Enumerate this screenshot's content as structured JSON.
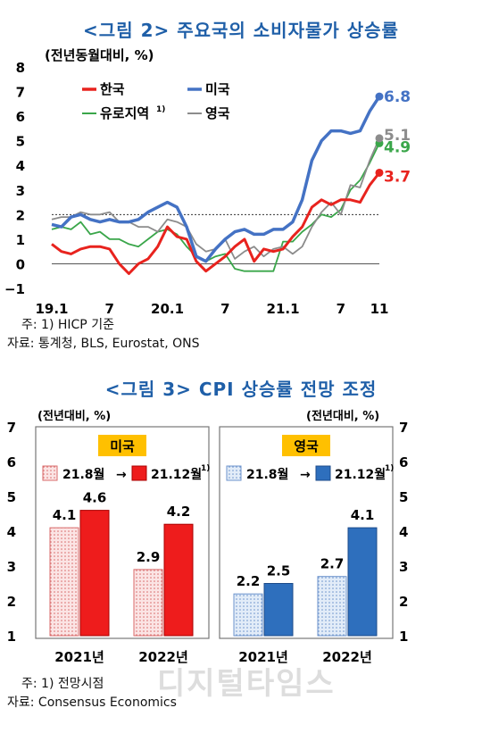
{
  "fig2": {
    "title": "<그림 2> 주요국의 소비자물가 상승률",
    "unit": "(전년동월대비, %)",
    "footnote": "주: 1) HICP 기준",
    "source": "자료: 통계청, BLS, Eurostat, ONS"
  },
  "fig3": {
    "title": "<그림 3> CPI 상승률 전망 조정",
    "unit_left": "(전년대비, %)",
    "unit_right": "(전년대비, %)",
    "footnote": "주: 1) 전망시점",
    "source": "자료: Consensus Economics"
  },
  "watermark": "디지털타임스",
  "colors": {
    "korea": "#e8231e",
    "usa": "#4472c4",
    "euro": "#3aa64a",
    "uk": "#8c8c8c",
    "title": "#1f5fa8",
    "box_label": "#ffc000",
    "bar_red": "#ee1c1c",
    "bar_blue": "#2e6fbd"
  },
  "chart_data": [
    {
      "type": "line",
      "title": "<그림 2> 주요국의 소비자물가 상승률",
      "ylabel": "(전년동월대비, %)",
      "ylim": [
        -1,
        8
      ],
      "yticks": [
        "8",
        "7",
        "6",
        "5",
        "4",
        "3",
        "2",
        "1",
        "0",
        "−1"
      ],
      "xtick_labels": [
        "19.1",
        "7",
        "20.1",
        "7",
        "21.1",
        "7",
        "11"
      ],
      "x": [
        "19.1",
        "19.2",
        "19.3",
        "19.4",
        "19.5",
        "19.6",
        "19.7",
        "19.8",
        "19.9",
        "19.10",
        "19.11",
        "19.12",
        "20.1",
        "20.2",
        "20.3",
        "20.4",
        "20.5",
        "20.6",
        "20.7",
        "20.8",
        "20.9",
        "20.10",
        "20.11",
        "20.12",
        "21.1",
        "21.2",
        "21.3",
        "21.4",
        "21.5",
        "21.6",
        "21.7",
        "21.8",
        "21.9",
        "21.10",
        "21.11"
      ],
      "reference_line": 2,
      "series": [
        {
          "name": "한국",
          "key": "korea",
          "end_label": "3.7",
          "values": [
            0.8,
            0.5,
            0.4,
            0.6,
            0.7,
            0.7,
            0.6,
            0.0,
            -0.4,
            0.0,
            0.2,
            0.7,
            1.5,
            1.1,
            1.0,
            0.1,
            -0.3,
            0.0,
            0.3,
            0.7,
            1.0,
            0.1,
            0.6,
            0.5,
            0.6,
            1.1,
            1.5,
            2.3,
            2.6,
            2.4,
            2.6,
            2.6,
            2.5,
            3.2,
            3.7
          ]
        },
        {
          "name": "미국",
          "key": "usa",
          "end_label": "6.8",
          "values": [
            1.6,
            1.5,
            1.9,
            2.0,
            1.8,
            1.7,
            1.8,
            1.7,
            1.7,
            1.8,
            2.1,
            2.3,
            2.5,
            2.3,
            1.5,
            0.3,
            0.1,
            0.6,
            1.0,
            1.3,
            1.4,
            1.2,
            1.2,
            1.4,
            1.4,
            1.7,
            2.6,
            4.2,
            5.0,
            5.4,
            5.4,
            5.3,
            5.4,
            6.2,
            6.8
          ]
        },
        {
          "name": "유로지역",
          "key": "euro",
          "sup": "1)",
          "end_label": "4.9",
          "values": [
            1.4,
            1.5,
            1.4,
            1.7,
            1.2,
            1.3,
            1.0,
            1.0,
            0.8,
            0.7,
            1.0,
            1.3,
            1.4,
            1.2,
            0.7,
            0.3,
            0.1,
            0.3,
            0.4,
            -0.2,
            -0.3,
            -0.3,
            -0.3,
            -0.3,
            0.9,
            0.9,
            1.3,
            1.6,
            2.0,
            1.9,
            2.2,
            3.0,
            3.4,
            4.1,
            4.9
          ]
        },
        {
          "name": "영국",
          "key": "uk",
          "end_label": "5.1",
          "values": [
            1.8,
            1.9,
            1.9,
            2.1,
            2.0,
            2.0,
            2.1,
            1.7,
            1.7,
            1.5,
            1.5,
            1.3,
            1.8,
            1.7,
            1.5,
            0.8,
            0.5,
            0.6,
            1.0,
            0.2,
            0.5,
            0.7,
            0.3,
            0.6,
            0.7,
            0.4,
            0.7,
            1.5,
            2.1,
            2.5,
            2.0,
            3.2,
            3.1,
            4.2,
            5.1
          ]
        }
      ]
    },
    {
      "type": "bar",
      "title": "미국",
      "categories": [
        "2021년",
        "2022년"
      ],
      "legend": {
        "from": "21.8월",
        "arrow": "→",
        "to": "21.12월",
        "sup": "1)"
      },
      "series": [
        {
          "name": "21.8월",
          "values": [
            4.1,
            2.9
          ]
        },
        {
          "name": "21.12월",
          "values": [
            4.6,
            4.2
          ]
        }
      ],
      "labels": [
        [
          "4.1",
          "2.9"
        ],
        [
          "4.6",
          "4.2"
        ]
      ],
      "ylim": [
        1,
        7
      ],
      "yticks": [
        "7",
        "6",
        "5",
        "4",
        "3",
        "2",
        "1"
      ]
    },
    {
      "type": "bar",
      "title": "영국",
      "categories": [
        "2021년",
        "2022년"
      ],
      "legend": {
        "from": "21.8월",
        "arrow": "→",
        "to": "21.12월",
        "sup": "1)"
      },
      "series": [
        {
          "name": "21.8월",
          "values": [
            2.2,
            2.7
          ]
        },
        {
          "name": "21.12월",
          "values": [
            2.5,
            4.1
          ]
        }
      ],
      "labels": [
        [
          "2.2",
          "2.7"
        ],
        [
          "2.5",
          "4.1"
        ]
      ],
      "ylim": [
        1,
        7
      ],
      "yticks": [
        "7",
        "6",
        "5",
        "4",
        "3",
        "2",
        "1"
      ]
    }
  ]
}
